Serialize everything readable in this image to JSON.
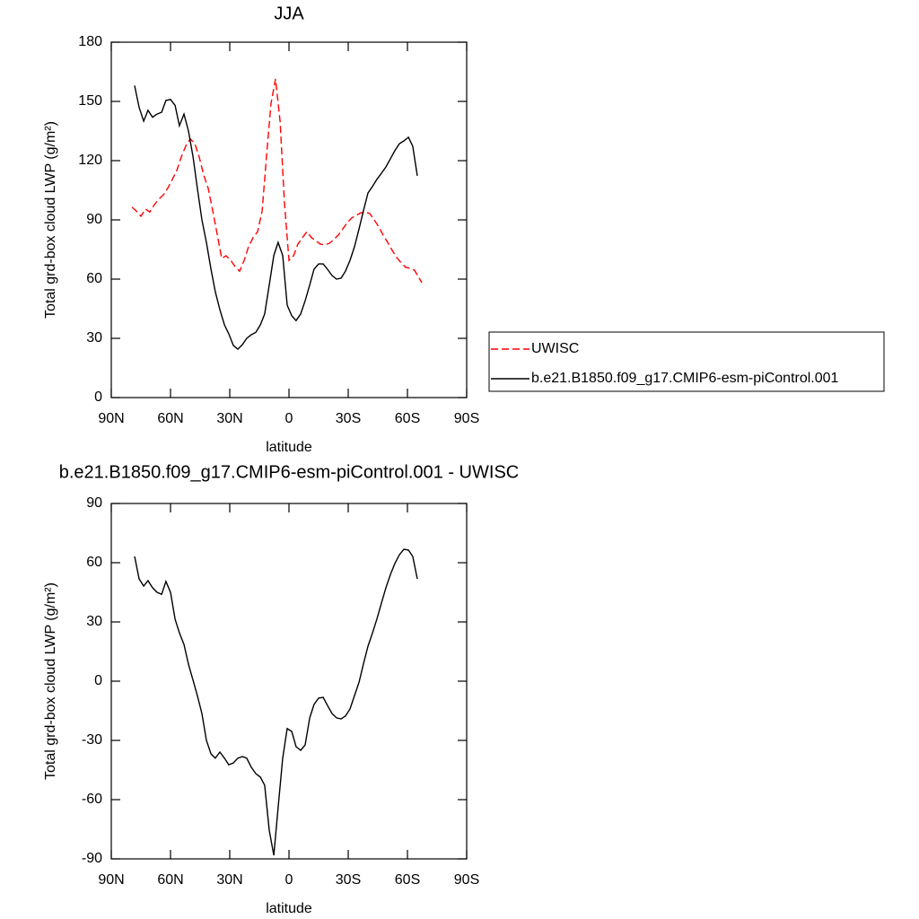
{
  "chart_data": [
    {
      "type": "line",
      "title": "JJA",
      "ylabel": "Total grd-box cloud LWP (g/m²)",
      "xlabel": "latitude",
      "xlim": [
        90,
        -90
      ],
      "ylim": [
        0,
        180
      ],
      "xticks": [
        {
          "value": 90,
          "label": "90N"
        },
        {
          "value": 60,
          "label": "60N"
        },
        {
          "value": 30,
          "label": "30N"
        },
        0,
        {
          "value": -30,
          "label": "30S"
        },
        {
          "value": -60,
          "label": "60S"
        },
        {
          "value": -90,
          "label": "90S"
        }
      ],
      "yticks": [
        0,
        30,
        60,
        90,
        120,
        150,
        180
      ],
      "legend": "right",
      "series": [
        {
          "name": "UWISC",
          "color": "#ff0000",
          "dash": true,
          "x": [
            79.5,
            77.3,
            75,
            72.7,
            70.5,
            68.2,
            65.9,
            63.6,
            61.4,
            59.1,
            56.8,
            54.5,
            52.3,
            50,
            47.7,
            45.5,
            43.2,
            40.9,
            38.6,
            36.4,
            34.1,
            31.8,
            29.5,
            27.3,
            25,
            22.7,
            20.5,
            18.2,
            15.9,
            13.6,
            11.4,
            9.1,
            6.8,
            4.5,
            2.3,
            0,
            -2.3,
            -4.5,
            -6.8,
            -9.1,
            -11.4,
            -13.6,
            -15.9,
            -18.2,
            -20.5,
            -22.7,
            -25,
            -27.3,
            -29.5,
            -31.8,
            -34.1,
            -36.4,
            -38.6,
            -40.9,
            -43.2,
            -45.5,
            -47.7,
            -50,
            -52.3,
            -54.5,
            -56.8,
            -59.1,
            -61.4,
            -63.6,
            -65.9,
            -67.3
          ],
          "values": [
            96.4,
            94.5,
            91.8,
            95.5,
            94,
            97.7,
            100.5,
            102.7,
            106,
            110.5,
            115,
            122,
            127.3,
            131,
            128.6,
            122,
            112.7,
            106,
            94.5,
            83,
            70.5,
            71.8,
            69.5,
            66.4,
            64,
            69.5,
            76.4,
            81,
            84,
            94.5,
            122,
            149,
            161.4,
            140,
            99,
            69.5,
            71.8,
            77.7,
            81,
            84,
            81,
            79.5,
            77.7,
            77.3,
            78.2,
            80,
            82.3,
            85.5,
            88.6,
            91,
            92.3,
            93.6,
            94,
            93.2,
            90,
            86.4,
            82.3,
            78.6,
            74.5,
            71,
            68.2,
            66,
            65.5,
            64.5,
            60.5,
            58.2
          ]
        },
        {
          "name": "b.e21.B1850.f09_g17.CMIP6-esm-piControl.001",
          "color": "#000000",
          "dash": false,
          "x": [
            78.2,
            75.9,
            73.6,
            71.4,
            69.1,
            66.8,
            64.5,
            62.3,
            60,
            57.7,
            55.5,
            53.2,
            50.9,
            48.6,
            46.4,
            44.1,
            41.8,
            39.5,
            37.3,
            35,
            32.7,
            30.5,
            28.2,
            25.9,
            23.6,
            21.4,
            19.1,
            16.8,
            14.5,
            12.3,
            10,
            7.7,
            5.5,
            3.2,
            0.9,
            -1.4,
            -3.6,
            -5.9,
            -8.2,
            -10.5,
            -12.7,
            -15,
            -17.3,
            -19.5,
            -21.8,
            -24.1,
            -26.4,
            -28.6,
            -30.9,
            -33.2,
            -35.5,
            -37.7,
            -40,
            -42.3,
            -44.5,
            -46.8,
            -49.1,
            -51.4,
            -53.6,
            -55.9,
            -58.2,
            -60.5,
            -62.7,
            -65
          ],
          "values": [
            158,
            147,
            140,
            145.5,
            142,
            143.6,
            144.5,
            150.5,
            151,
            148,
            137.7,
            143.6,
            135,
            122,
            106,
            90,
            78.6,
            65,
            53.6,
            44.5,
            36.8,
            32.3,
            26.4,
            24.5,
            26.8,
            30,
            31.8,
            33,
            36.8,
            42.3,
            57,
            72,
            78.6,
            72,
            46.8,
            41.4,
            39,
            42.3,
            49,
            57,
            65,
            67.7,
            67.7,
            65,
            61.8,
            60,
            60.5,
            64,
            69.5,
            76.4,
            85.5,
            94.5,
            103.6,
            107,
            110.5,
            113.6,
            116.8,
            121,
            125,
            128.6,
            130,
            131.8,
            127.3,
            112.3
          ]
        }
      ]
    },
    {
      "type": "line",
      "title": "b.e21.B1850.f09_g17.CMIP6-esm-piControl.001 - UWISC",
      "ylabel": "Total grd-box cloud LWP (g/m²)",
      "xlabel": "latitude",
      "xlim": [
        90,
        -90
      ],
      "ylim": [
        -90,
        90
      ],
      "xticks": [
        {
          "value": 90,
          "label": "90N"
        },
        {
          "value": 60,
          "label": "60N"
        },
        {
          "value": 30,
          "label": "30N"
        },
        0,
        {
          "value": -30,
          "label": "30S"
        },
        {
          "value": -60,
          "label": "60S"
        },
        {
          "value": -90,
          "label": "90S"
        }
      ],
      "yticks": [
        -90,
        -60,
        -30,
        0,
        30,
        60,
        90
      ],
      "color": "#000000",
      "x": [
        78.2,
        75.9,
        73.6,
        71.4,
        69.1,
        66.8,
        64.5,
        62.3,
        60,
        57.7,
        55.5,
        53.2,
        50.9,
        48.6,
        46.4,
        44.1,
        41.8,
        39.5,
        37.3,
        35,
        32.7,
        30.5,
        28.2,
        25.9,
        23.6,
        21.4,
        19.1,
        16.8,
        14.5,
        12.3,
        10,
        7.7,
        5.5,
        3.2,
        0.9,
        -1.4,
        -3.6,
        -5.9,
        -8.2,
        -10.5,
        -12.7,
        -15,
        -17.3,
        -19.5,
        -21.8,
        -24.1,
        -26.4,
        -28.6,
        -30.9,
        -33.2,
        -35.5,
        -37.7,
        -40,
        -42.3,
        -44.5,
        -46.8,
        -49.1,
        -51.4,
        -53.6,
        -55.9,
        -58.2,
        -60.5,
        -62.7,
        -65
      ],
      "values": [
        63.2,
        51.8,
        48.2,
        50.9,
        47.3,
        45,
        44,
        50.5,
        45,
        31.4,
        24.5,
        18.6,
        8.6,
        0.5,
        -7.3,
        -16.4,
        -30,
        -36.8,
        -39,
        -35.9,
        -39,
        -42.3,
        -41.4,
        -39,
        -38.2,
        -39,
        -43.6,
        -46.8,
        -48.6,
        -52.7,
        -75.5,
        -88.2,
        -64,
        -39,
        -24,
        -25.5,
        -33.2,
        -35,
        -32.3,
        -18.6,
        -11.8,
        -8.6,
        -8.2,
        -12.3,
        -16.4,
        -18.6,
        -19.1,
        -17.7,
        -14.1,
        -7.3,
        -0.5,
        8.6,
        17.7,
        24.5,
        31.4,
        39.5,
        47.3,
        54.1,
        59.5,
        64,
        66.8,
        66.4,
        63.2,
        51.8
      ]
    }
  ]
}
